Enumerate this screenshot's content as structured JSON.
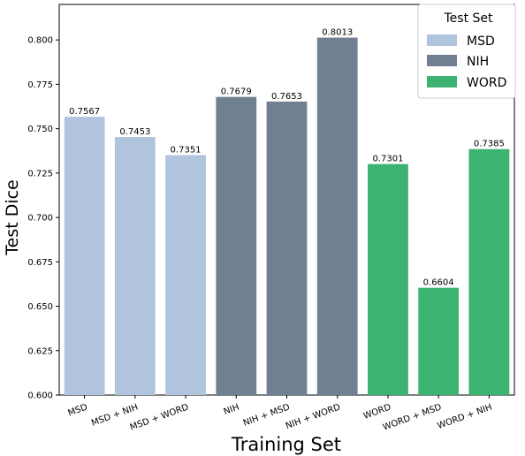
{
  "chart_data": {
    "type": "bar",
    "title": "",
    "xlabel": "Training Set",
    "ylabel": "Test Dice",
    "ylim": [
      0.6,
      0.82
    ],
    "yticks": [
      "0.600",
      "0.625",
      "0.650",
      "0.675",
      "0.700",
      "0.725",
      "0.750",
      "0.775",
      "0.800"
    ],
    "categories": [
      "MSD",
      "MSD + NIH",
      "MSD + WORD",
      "NIH",
      "NIH + MSD",
      "NIH + WORD",
      "WORD",
      "WORD + MSD",
      "WORD + NIH"
    ],
    "values": [
      0.7567,
      0.7453,
      0.7351,
      0.7679,
      0.7653,
      0.8013,
      0.7301,
      0.6604,
      0.7385
    ],
    "value_labels": [
      "0.7567",
      "0.7453",
      "0.7351",
      "0.7679",
      "0.7653",
      "0.8013",
      "0.7301",
      "0.6604",
      "0.7385"
    ],
    "groups": [
      "MSD",
      "MSD",
      "MSD",
      "NIH",
      "NIH",
      "NIH",
      "WORD",
      "WORD",
      "WORD"
    ],
    "legend": {
      "title": "Test Set",
      "placement": "top-right",
      "entries": [
        {
          "name": "MSD",
          "color": "#b0c4de"
        },
        {
          "name": "NIH",
          "color": "#708090"
        },
        {
          "name": "WORD",
          "color": "#3cb371"
        }
      ]
    },
    "grid": false
  }
}
